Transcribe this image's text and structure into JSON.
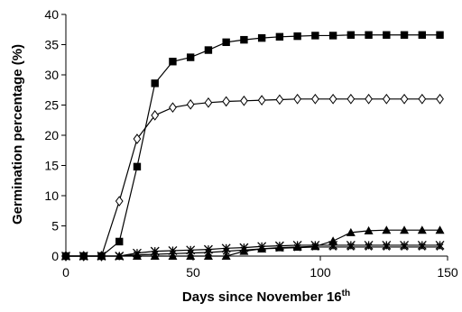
{
  "chart_data": {
    "type": "line",
    "title": "",
    "xlabel": "Days since November 16",
    "xlabel_superscript": "th",
    "ylabel": "Germination percentage (%)",
    "xlim": [
      0,
      150
    ],
    "ylim": [
      0,
      40
    ],
    "xticks": [
      0,
      50,
      100,
      150
    ],
    "yticks": [
      0,
      5,
      10,
      15,
      20,
      25,
      30,
      35,
      40
    ],
    "grid": false,
    "legend": "none",
    "x": [
      0,
      7,
      14,
      21,
      28,
      35,
      42,
      49,
      56,
      63,
      70,
      77,
      84,
      91,
      98,
      105,
      112,
      119,
      126,
      133,
      140,
      147
    ],
    "series": [
      {
        "marker": "filled-square",
        "color": "#000000",
        "values": [
          0,
          0,
          0,
          2.4,
          14.8,
          28.6,
          32.2,
          32.9,
          34.1,
          35.4,
          35.8,
          36.1,
          36.3,
          36.4,
          36.5,
          36.5,
          36.6,
          36.6,
          36.6,
          36.6,
          36.6,
          36.6
        ]
      },
      {
        "marker": "open-diamond",
        "color": "#000000",
        "values": [
          0,
          0,
          0,
          9.1,
          19.4,
          23.3,
          24.6,
          25.1,
          25.4,
          25.6,
          25.7,
          25.8,
          25.9,
          26.0,
          26.0,
          26.0,
          26.0,
          26.0,
          26.0,
          26.0,
          26.0,
          26.0
        ]
      },
      {
        "marker": "filled-triangle",
        "color": "#000000",
        "values": [
          0,
          0,
          0,
          0,
          0,
          0,
          0,
          0,
          0,
          0,
          0.8,
          1.2,
          1.4,
          1.5,
          1.6,
          2.5,
          3.9,
          4.2,
          4.3,
          4.3,
          4.3,
          4.3
        ]
      },
      {
        "marker": "asterisk",
        "color": "#000000",
        "values": [
          0,
          0,
          0,
          0,
          0.5,
          0.8,
          0.9,
          1.0,
          1.1,
          1.3,
          1.4,
          1.6,
          1.7,
          1.8,
          1.8,
          1.8,
          1.8,
          1.8,
          1.8,
          1.8,
          1.8,
          1.8
        ]
      },
      {
        "marker": "cross",
        "color": "#000000",
        "values": [
          0,
          0,
          0,
          0,
          0.2,
          0.3,
          0.4,
          0.5,
          0.6,
          0.8,
          1.0,
          1.2,
          1.3,
          1.4,
          1.5,
          1.5,
          1.5,
          1.5,
          1.5,
          1.5,
          1.5,
          1.5
        ]
      }
    ]
  }
}
